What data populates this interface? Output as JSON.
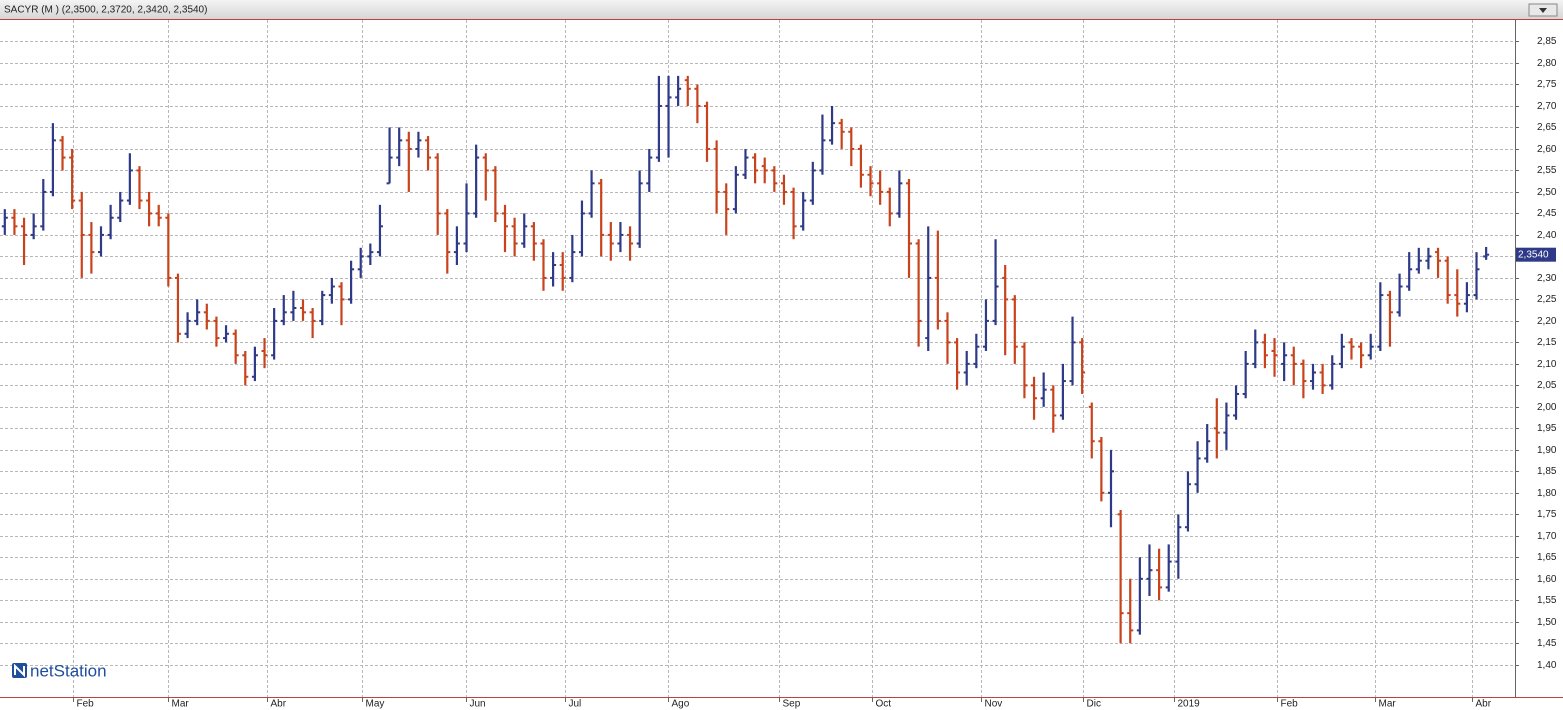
{
  "chart_data": {
    "type": "ohlc",
    "title": "SACYR (M ) (2,3500, 2,3720, 2,3420, 2,3540)",
    "logo": "netStation",
    "up_color": "#2e3a87",
    "down_color": "#c8431c",
    "ylim": [
      1.325,
      2.9
    ],
    "yticks": [
      {
        "value": 1.4,
        "label": "1,40"
      },
      {
        "value": 1.45,
        "label": "1,45"
      },
      {
        "value": 1.5,
        "label": "1,50"
      },
      {
        "value": 1.55,
        "label": "1,55"
      },
      {
        "value": 1.6,
        "label": "1,60"
      },
      {
        "value": 1.65,
        "label": "1,65"
      },
      {
        "value": 1.7,
        "label": "1,70"
      },
      {
        "value": 1.75,
        "label": "1,75"
      },
      {
        "value": 1.8,
        "label": "1,80"
      },
      {
        "value": 1.85,
        "label": "1,85"
      },
      {
        "value": 1.9,
        "label": "1,90"
      },
      {
        "value": 1.95,
        "label": "1,95"
      },
      {
        "value": 2.0,
        "label": "2,00"
      },
      {
        "value": 2.05,
        "label": "2,05"
      },
      {
        "value": 2.1,
        "label": "2,10"
      },
      {
        "value": 2.15,
        "label": "2,15"
      },
      {
        "value": 2.2,
        "label": "2,20"
      },
      {
        "value": 2.25,
        "label": "2,25"
      },
      {
        "value": 2.3,
        "label": "2,30"
      },
      {
        "value": 2.35,
        "label": "2,35"
      },
      {
        "value": 2.4,
        "label": "2,40"
      },
      {
        "value": 2.45,
        "label": "2,45"
      },
      {
        "value": 2.5,
        "label": "2,50"
      },
      {
        "value": 2.55,
        "label": "2,55"
      },
      {
        "value": 2.6,
        "label": "2,60"
      },
      {
        "value": 2.65,
        "label": "2,65"
      },
      {
        "value": 2.7,
        "label": "2,70"
      },
      {
        "value": 2.75,
        "label": "2,75"
      },
      {
        "value": 2.8,
        "label": "2,80"
      },
      {
        "value": 2.85,
        "label": "2,85"
      }
    ],
    "xlim": [
      -0.5,
      157
    ],
    "xticks": [
      {
        "value": 7.1,
        "label": "Feb"
      },
      {
        "value": 17.0,
        "label": "Mar"
      },
      {
        "value": 27.3,
        "label": "Abr"
      },
      {
        "value": 37.1,
        "label": "May"
      },
      {
        "value": 47.9,
        "label": "Jun"
      },
      {
        "value": 58.2,
        "label": "Jul"
      },
      {
        "value": 68.9,
        "label": "Ago"
      },
      {
        "value": 80.5,
        "label": "Sep"
      },
      {
        "value": 90.2,
        "label": "Oct"
      },
      {
        "value": 101.5,
        "label": "Nov"
      },
      {
        "value": 112.1,
        "label": "Dic"
      },
      {
        "value": 121.6,
        "label": "2019"
      },
      {
        "value": 132.3,
        "label": "Feb"
      },
      {
        "value": 142.4,
        "label": "Mar"
      },
      {
        "value": 152.5,
        "label": "Abr"
      }
    ],
    "grid": true,
    "last_price": {
      "value": 2.354,
      "label": "2,3540"
    },
    "ohlc": [
      [
        2.42,
        2.46,
        2.4,
        2.44
      ],
      [
        2.44,
        2.46,
        2.4,
        2.42
      ],
      [
        2.42,
        2.44,
        2.33,
        2.4
      ],
      [
        2.4,
        2.45,
        2.39,
        2.42
      ],
      [
        2.42,
        2.53,
        2.41,
        2.5
      ],
      [
        2.5,
        2.66,
        2.49,
        2.62
      ],
      [
        2.62,
        2.63,
        2.55,
        2.58
      ],
      [
        2.58,
        2.6,
        2.46,
        2.48
      ],
      [
        2.48,
        2.5,
        2.3,
        2.4
      ],
      [
        2.4,
        2.43,
        2.31,
        2.36
      ],
      [
        2.36,
        2.42,
        2.35,
        2.4
      ],
      [
        2.4,
        2.47,
        2.39,
        2.44
      ],
      [
        2.44,
        2.5,
        2.43,
        2.48
      ],
      [
        2.48,
        2.59,
        2.47,
        2.55
      ],
      [
        2.55,
        2.56,
        2.46,
        2.48
      ],
      [
        2.48,
        2.5,
        2.42,
        2.45
      ],
      [
        2.45,
        2.47,
        2.42,
        2.44
      ],
      [
        2.44,
        2.45,
        2.28,
        2.3
      ],
      [
        2.3,
        2.31,
        2.15,
        2.17
      ],
      [
        2.17,
        2.22,
        2.16,
        2.2
      ],
      [
        2.2,
        2.25,
        2.19,
        2.22
      ],
      [
        2.22,
        2.24,
        2.18,
        2.2
      ],
      [
        2.2,
        2.21,
        2.14,
        2.16
      ],
      [
        2.16,
        2.19,
        2.15,
        2.17
      ],
      [
        2.17,
        2.18,
        2.1,
        2.12
      ],
      [
        2.12,
        2.13,
        2.05,
        2.07
      ],
      [
        2.07,
        2.14,
        2.06,
        2.12
      ],
      [
        2.13,
        2.16,
        2.09,
        2.12
      ],
      [
        2.12,
        2.23,
        2.11,
        2.2
      ],
      [
        2.2,
        2.26,
        2.19,
        2.22
      ],
      [
        2.22,
        2.27,
        2.2,
        2.23
      ],
      [
        2.23,
        2.25,
        2.2,
        2.22
      ],
      [
        2.22,
        2.23,
        2.16,
        2.2
      ],
      [
        2.2,
        2.27,
        2.19,
        2.26
      ],
      [
        2.26,
        2.3,
        2.24,
        2.28
      ],
      [
        2.28,
        2.29,
        2.19,
        2.25
      ],
      [
        2.25,
        2.34,
        2.24,
        2.32
      ],
      [
        2.32,
        2.37,
        2.3,
        2.35
      ],
      [
        2.35,
        2.38,
        2.33,
        2.36
      ],
      [
        2.36,
        2.47,
        2.35,
        2.42
      ],
      [
        2.52,
        2.65,
        2.52,
        2.58
      ],
      [
        2.58,
        2.65,
        2.56,
        2.62
      ],
      [
        2.62,
        2.64,
        2.5,
        2.6
      ],
      [
        2.6,
        2.64,
        2.58,
        2.62
      ],
      [
        2.62,
        2.63,
        2.55,
        2.58
      ],
      [
        2.58,
        2.59,
        2.4,
        2.45
      ],
      [
        2.45,
        2.46,
        2.31,
        2.36
      ],
      [
        2.36,
        2.42,
        2.33,
        2.38
      ],
      [
        2.38,
        2.52,
        2.36,
        2.45
      ],
      [
        2.45,
        2.61,
        2.44,
        2.58
      ],
      [
        2.58,
        2.59,
        2.48,
        2.55
      ],
      [
        2.55,
        2.56,
        2.43,
        2.45
      ],
      [
        2.45,
        2.47,
        2.36,
        2.42
      ],
      [
        2.42,
        2.44,
        2.35,
        2.38
      ],
      [
        2.38,
        2.45,
        2.37,
        2.42
      ],
      [
        2.42,
        2.43,
        2.34,
        2.38
      ],
      [
        2.38,
        2.39,
        2.27,
        2.3
      ],
      [
        2.3,
        2.36,
        2.28,
        2.33
      ],
      [
        2.33,
        2.36,
        2.27,
        2.3
      ],
      [
        2.3,
        2.4,
        2.29,
        2.36
      ],
      [
        2.36,
        2.48,
        2.35,
        2.45
      ],
      [
        2.45,
        2.55,
        2.44,
        2.52
      ],
      [
        2.52,
        2.53,
        2.35,
        2.4
      ],
      [
        2.4,
        2.43,
        2.34,
        2.38
      ],
      [
        2.38,
        2.43,
        2.36,
        2.4
      ],
      [
        2.4,
        2.42,
        2.34,
        2.38
      ],
      [
        2.38,
        2.55,
        2.37,
        2.52
      ],
      [
        2.52,
        2.6,
        2.5,
        2.58
      ],
      [
        2.58,
        2.77,
        2.57,
        2.7
      ],
      [
        2.7,
        2.77,
        2.58,
        2.72
      ],
      [
        2.72,
        2.77,
        2.7,
        2.74
      ],
      [
        2.76,
        2.77,
        2.7,
        2.74
      ],
      [
        2.74,
        2.75,
        2.66,
        2.7
      ],
      [
        2.7,
        2.71,
        2.57,
        2.6
      ],
      [
        2.6,
        2.62,
        2.45,
        2.5
      ],
      [
        2.5,
        2.52,
        2.4,
        2.46
      ],
      [
        2.46,
        2.56,
        2.45,
        2.54
      ],
      [
        2.54,
        2.6,
        2.53,
        2.58
      ],
      [
        2.58,
        2.59,
        2.52,
        2.55
      ],
      [
        2.56,
        2.58,
        2.52,
        2.55
      ],
      [
        2.55,
        2.56,
        2.5,
        2.52
      ],
      [
        2.52,
        2.54,
        2.47,
        2.5
      ],
      [
        2.5,
        2.51,
        2.39,
        2.42
      ],
      [
        2.42,
        2.5,
        2.41,
        2.48
      ],
      [
        2.48,
        2.57,
        2.47,
        2.55
      ],
      [
        2.55,
        2.68,
        2.54,
        2.62
      ],
      [
        2.62,
        2.7,
        2.61,
        2.66
      ],
      [
        2.66,
        2.67,
        2.6,
        2.64
      ],
      [
        2.64,
        2.65,
        2.56,
        2.6
      ],
      [
        2.6,
        2.61,
        2.51,
        2.54
      ],
      [
        2.54,
        2.56,
        2.49,
        2.52
      ],
      [
        2.52,
        2.55,
        2.47,
        2.5
      ],
      [
        2.5,
        2.51,
        2.42,
        2.45
      ],
      [
        2.45,
        2.55,
        2.44,
        2.52
      ],
      [
        2.52,
        2.53,
        2.3,
        2.38
      ],
      [
        2.38,
        2.39,
        2.14,
        2.2
      ],
      [
        2.16,
        2.42,
        2.13,
        2.3
      ],
      [
        2.3,
        2.41,
        2.18,
        2.2
      ],
      [
        2.2,
        2.22,
        2.1,
        2.15
      ],
      [
        2.15,
        2.16,
        2.04,
        2.08
      ],
      [
        2.08,
        2.13,
        2.05,
        2.1
      ],
      [
        2.1,
        2.17,
        2.09,
        2.14
      ],
      [
        2.14,
        2.25,
        2.13,
        2.2
      ],
      [
        2.2,
        2.39,
        2.19,
        2.28
      ],
      [
        2.3,
        2.33,
        2.12,
        2.25
      ],
      [
        2.25,
        2.26,
        2.1,
        2.14
      ],
      [
        2.14,
        2.15,
        2.02,
        2.05
      ],
      [
        2.05,
        2.07,
        1.97,
        2.02
      ],
      [
        2.02,
        2.08,
        2.0,
        2.04
      ],
      [
        2.04,
        2.05,
        1.94,
        1.98
      ],
      [
        1.98,
        2.1,
        1.97,
        2.06
      ],
      [
        2.06,
        2.21,
        2.05,
        2.15
      ],
      [
        2.15,
        2.16,
        2.03,
        2.08
      ],
      [
        2.0,
        2.01,
        1.88,
        1.92
      ],
      [
        1.92,
        1.93,
        1.78,
        1.8
      ],
      [
        1.8,
        1.9,
        1.72,
        1.85
      ],
      [
        1.75,
        1.76,
        1.45,
        1.52
      ],
      [
        1.52,
        1.6,
        1.45,
        1.48
      ],
      [
        1.48,
        1.65,
        1.47,
        1.6
      ],
      [
        1.6,
        1.68,
        1.56,
        1.62
      ],
      [
        1.62,
        1.67,
        1.55,
        1.58
      ],
      [
        1.58,
        1.68,
        1.57,
        1.64
      ],
      [
        1.64,
        1.75,
        1.6,
        1.72
      ],
      [
        1.72,
        1.85,
        1.71,
        1.82
      ],
      [
        1.82,
        1.92,
        1.8,
        1.88
      ],
      [
        1.88,
        1.96,
        1.87,
        1.92
      ],
      [
        1.95,
        2.02,
        1.88,
        1.94
      ],
      [
        1.94,
        2.01,
        1.9,
        1.98
      ],
      [
        1.98,
        2.05,
        1.97,
        2.03
      ],
      [
        2.03,
        2.13,
        2.02,
        2.1
      ],
      [
        2.1,
        2.18,
        2.09,
        2.15
      ],
      [
        2.15,
        2.17,
        2.09,
        2.12
      ],
      [
        2.13,
        2.16,
        2.07,
        2.12
      ],
      [
        2.1,
        2.15,
        2.06,
        2.12
      ],
      [
        2.12,
        2.14,
        2.05,
        2.1
      ],
      [
        2.1,
        2.11,
        2.02,
        2.06
      ],
      [
        2.06,
        2.1,
        2.04,
        2.08
      ],
      [
        2.08,
        2.1,
        2.03,
        2.05
      ],
      [
        2.05,
        2.12,
        2.04,
        2.1
      ],
      [
        2.1,
        2.17,
        2.09,
        2.14
      ],
      [
        2.15,
        2.16,
        2.11,
        2.14
      ],
      [
        2.14,
        2.15,
        2.09,
        2.12
      ],
      [
        2.12,
        2.17,
        2.11,
        2.14
      ],
      [
        2.14,
        2.29,
        2.13,
        2.26
      ],
      [
        2.26,
        2.27,
        2.14,
        2.22
      ],
      [
        2.22,
        2.31,
        2.21,
        2.28
      ],
      [
        2.28,
        2.36,
        2.27,
        2.32
      ],
      [
        2.32,
        2.37,
        2.31,
        2.34
      ],
      [
        2.34,
        2.37,
        2.32,
        2.35
      ],
      [
        2.36,
        2.37,
        2.3,
        2.34
      ],
      [
        2.34,
        2.35,
        2.24,
        2.26
      ],
      [
        2.26,
        2.32,
        2.21,
        2.24
      ],
      [
        2.24,
        2.29,
        2.22,
        2.26
      ],
      [
        2.26,
        2.36,
        2.25,
        2.32
      ],
      [
        2.35,
        2.372,
        2.342,
        2.354
      ]
    ]
  }
}
